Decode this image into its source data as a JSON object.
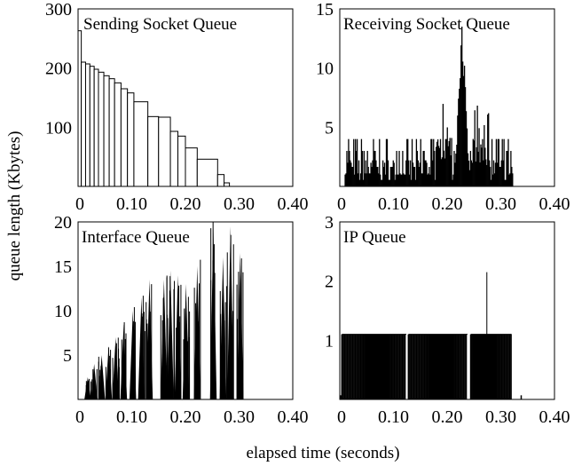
{
  "figure": {
    "ylabel": "queue length (Kbytes)",
    "xlabel": "elapsed time (seconds)"
  },
  "chart_data": [
    {
      "type": "bar",
      "title": "Sending Socket Queue",
      "xlim": [
        0,
        0.4
      ],
      "ylim": [
        0,
        300
      ],
      "xticks": [
        "0",
        "0.10",
        "0.20",
        "0.30",
        "0.40"
      ],
      "yticks": [
        "100",
        "200",
        "300"
      ],
      "bars": [
        {
          "x0": 0.0,
          "x1": 0.006,
          "y": 263
        },
        {
          "x0": 0.006,
          "x1": 0.014,
          "y": 210
        },
        {
          "x0": 0.014,
          "x1": 0.022,
          "y": 207
        },
        {
          "x0": 0.022,
          "x1": 0.03,
          "y": 203
        },
        {
          "x0": 0.03,
          "x1": 0.038,
          "y": 198
        },
        {
          "x0": 0.038,
          "x1": 0.048,
          "y": 193
        },
        {
          "x0": 0.048,
          "x1": 0.058,
          "y": 187
        },
        {
          "x0": 0.058,
          "x1": 0.068,
          "y": 182
        },
        {
          "x0": 0.068,
          "x1": 0.08,
          "y": 175
        },
        {
          "x0": 0.08,
          "x1": 0.092,
          "y": 165
        },
        {
          "x0": 0.092,
          "x1": 0.104,
          "y": 158
        },
        {
          "x0": 0.104,
          "x1": 0.13,
          "y": 143
        },
        {
          "x0": 0.13,
          "x1": 0.15,
          "y": 118
        },
        {
          "x0": 0.15,
          "x1": 0.172,
          "y": 117
        },
        {
          "x0": 0.172,
          "x1": 0.186,
          "y": 93
        },
        {
          "x0": 0.186,
          "x1": 0.2,
          "y": 85
        },
        {
          "x0": 0.2,
          "x1": 0.222,
          "y": 65
        },
        {
          "x0": 0.222,
          "x1": 0.26,
          "y": 46
        },
        {
          "x0": 0.26,
          "x1": 0.272,
          "y": 20
        },
        {
          "x0": 0.272,
          "x1": 0.282,
          "y": 6
        }
      ]
    },
    {
      "type": "bar",
      "title": "Receiving Socket Queue",
      "xlim": [
        0,
        0.4
      ],
      "ylim": [
        0,
        15
      ],
      "xticks": [
        "0",
        "0.10",
        "0.20",
        "0.30",
        "0.40"
      ],
      "yticks": [
        "5",
        "10",
        "15"
      ],
      "x_range": [
        0.01,
        0.322
      ],
      "peak": {
        "x": 0.228,
        "y": 13.5
      },
      "base_levels": [
        1,
        2,
        3,
        4
      ]
    },
    {
      "type": "bar",
      "title": "Interface Queue",
      "xlim": [
        0,
        0.4
      ],
      "ylim": [
        0,
        20
      ],
      "xticks": [
        "0",
        "0.10",
        "0.20",
        "0.30",
        "0.40"
      ],
      "yticks": [
        "5",
        "10",
        "15",
        "20"
      ],
      "bursts": [
        {
          "x": 0.018,
          "h": 2.5
        },
        {
          "x": 0.03,
          "h": 4
        },
        {
          "x": 0.044,
          "h": 5
        },
        {
          "x": 0.057,
          "h": 6
        },
        {
          "x": 0.07,
          "h": 7
        },
        {
          "x": 0.085,
          "h": 8.5
        },
        {
          "x": 0.102,
          "h": 10
        },
        {
          "x": 0.118,
          "h": 11.5
        },
        {
          "x": 0.133,
          "h": 13.5
        },
        {
          "x": 0.16,
          "h": 13.5
        },
        {
          "x": 0.172,
          "h": 14.5
        },
        {
          "x": 0.186,
          "h": 14
        },
        {
          "x": 0.201,
          "h": 13
        },
        {
          "x": 0.222,
          "h": 15
        },
        {
          "x": 0.252,
          "h": 19.5
        },
        {
          "x": 0.27,
          "h": 16
        },
        {
          "x": 0.284,
          "h": 19.5
        },
        {
          "x": 0.302,
          "h": 16.5
        }
      ]
    },
    {
      "type": "bar",
      "title": "IP Queue",
      "xlim": [
        0,
        0.4
      ],
      "ylim": [
        0,
        3
      ],
      "xticks": [
        "0",
        "0.10",
        "0.20",
        "0.30",
        "0.40"
      ],
      "yticks": [
        "1",
        "2",
        "3"
      ],
      "segments": [
        {
          "x0": 0.004,
          "x1": 0.124,
          "y": 1.1
        },
        {
          "x0": 0.128,
          "x1": 0.238,
          "y": 1.1
        },
        {
          "x0": 0.244,
          "x1": 0.32,
          "y": 1.1
        }
      ],
      "spike": {
        "x": 0.274,
        "y": 2.15
      },
      "blips": [
        {
          "x": 0.002,
          "y": 0.07
        },
        {
          "x": 0.338,
          "y": 0.07
        }
      ]
    }
  ]
}
